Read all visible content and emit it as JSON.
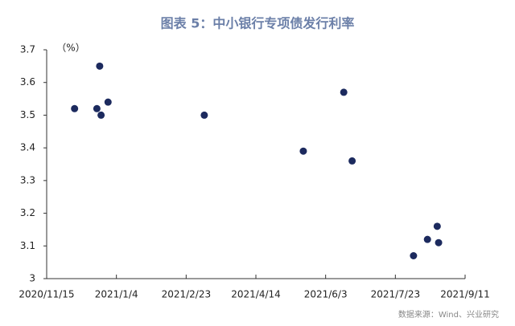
{
  "chart_data": {
    "type": "scatter",
    "title": "图表 5：中小银行专项债发行利率",
    "y_label": "（%）",
    "source": "数据来源：Wind、兴业研究",
    "color": "#1c2a5e",
    "series": [
      {
        "x": [
          "2020/12/5",
          "2020/12/21",
          "2020/12/23",
          "2020/12/24",
          "2020/12/29",
          "2021/3/8",
          "2021/5/18",
          "2021/6/16",
          "2021/6/22",
          "2021/8/5",
          "2021/8/15",
          "2021/8/22",
          "2021/8/23"
        ],
        "values": [
          3.52,
          3.52,
          3.65,
          3.5,
          3.54,
          3.5,
          3.39,
          3.57,
          3.36,
          3.07,
          3.12,
          3.16,
          3.11
        ]
      }
    ],
    "xlim": [
      "2020/11/15",
      "2021/9/11"
    ],
    "xticks": [
      "2020/11/15",
      "2021/1/4",
      "2021/2/23",
      "2021/4/14",
      "2021/6/3",
      "2021/7/23",
      "2021/9/11"
    ],
    "ylim": [
      3,
      3.7
    ],
    "yticks": [
      3,
      3.1,
      3.2,
      3.3,
      3.4,
      3.5,
      3.6,
      3.7
    ]
  }
}
